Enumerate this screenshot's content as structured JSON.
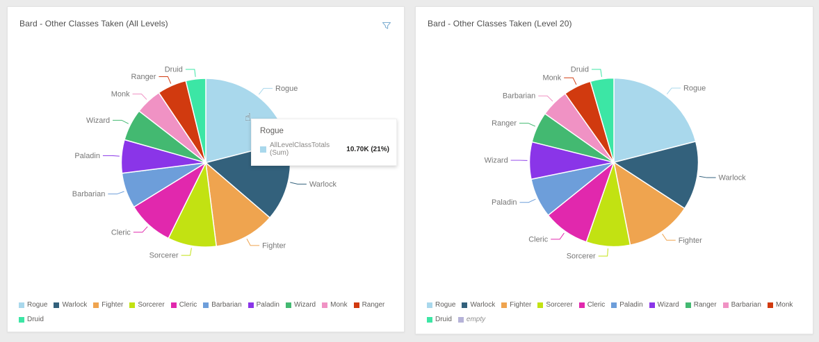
{
  "page": {
    "background_color": "#ebebeb",
    "card_color": "#ffffff"
  },
  "icons": {
    "filter": "funnel-icon",
    "filter_color": "#7fafd2",
    "cursor": "hand-pointer-icon",
    "cursor_glyph": "☝"
  },
  "chart_data": [
    {
      "type": "pie",
      "title": "Bard - Other Classes Taken (All Levels)",
      "legend_position": "bottom",
      "start_angle_deg": 0,
      "clockwise": true,
      "categories": [
        "Rogue",
        "Warlock",
        "Fighter",
        "Sorcerer",
        "Cleric",
        "Barbarian",
        "Paladin",
        "Wizard",
        "Monk",
        "Ranger",
        "Druid"
      ],
      "values_pct": [
        21,
        15.3,
        11.7,
        9.3,
        8.9,
        6.8,
        6.4,
        6.1,
        5.1,
        5.6,
        3.8
      ],
      "colors": [
        "#a9d8ec",
        "#33617c",
        "#efa44f",
        "#c2e212",
        "#e128ad",
        "#6d9eda",
        "#8a35e8",
        "#43b971",
        "#f092c4",
        "#d13a0f",
        "#3ce6a5"
      ],
      "legend": [
        {
          "label": "Rogue",
          "color": "#a9d8ec"
        },
        {
          "label": "Warlock",
          "color": "#33617c"
        },
        {
          "label": "Fighter",
          "color": "#efa44f"
        },
        {
          "label": "Sorcerer",
          "color": "#c2e212"
        },
        {
          "label": "Cleric",
          "color": "#e128ad"
        },
        {
          "label": "Barbarian",
          "color": "#6d9eda"
        },
        {
          "label": "Paladin",
          "color": "#8a35e8"
        },
        {
          "label": "Wizard",
          "color": "#43b971"
        },
        {
          "label": "Monk",
          "color": "#f092c4"
        },
        {
          "label": "Ranger",
          "color": "#d13a0f"
        },
        {
          "label": "Druid",
          "color": "#3ce6a5"
        }
      ],
      "tooltip": {
        "title": "Rogue",
        "series": "AllLevelClassTotals (Sum)",
        "value": "10.70K (21%)",
        "swatch_color": "#a9d8ec"
      },
      "has_filter_icon": true
    },
    {
      "type": "pie",
      "title": "Bard - Other Classes Taken (Level 20)",
      "legend_position": "bottom",
      "start_angle_deg": 0,
      "clockwise": true,
      "categories": [
        "Rogue",
        "Warlock",
        "Fighter",
        "Sorcerer",
        "Cleric",
        "Paladin",
        "Wizard",
        "Ranger",
        "Barbarian",
        "Monk",
        "Druid"
      ],
      "values_pct": [
        21,
        13.2,
        12.7,
        8.4,
        8.9,
        7.6,
        7.1,
        5.9,
        5.4,
        5.3,
        4.5
      ],
      "colors": [
        "#a9d8ec",
        "#33617c",
        "#efa44f",
        "#c2e212",
        "#e128ad",
        "#6d9eda",
        "#8a35e8",
        "#43b971",
        "#f092c4",
        "#d13a0f",
        "#3ce6a5"
      ],
      "legend": [
        {
          "label": "Rogue",
          "color": "#a9d8ec"
        },
        {
          "label": "Warlock",
          "color": "#33617c"
        },
        {
          "label": "Fighter",
          "color": "#efa44f"
        },
        {
          "label": "Sorcerer",
          "color": "#c2e212"
        },
        {
          "label": "Cleric",
          "color": "#e128ad"
        },
        {
          "label": "Paladin",
          "color": "#6d9eda"
        },
        {
          "label": "Wizard",
          "color": "#8a35e8"
        },
        {
          "label": "Ranger",
          "color": "#43b971"
        },
        {
          "label": "Barbarian",
          "color": "#f092c4"
        },
        {
          "label": "Monk",
          "color": "#d13a0f"
        },
        {
          "label": "Druid",
          "color": "#3ce6a5"
        },
        {
          "label": "empty",
          "color": "#b6b3d8",
          "italic": true
        }
      ],
      "has_filter_icon": false
    }
  ]
}
